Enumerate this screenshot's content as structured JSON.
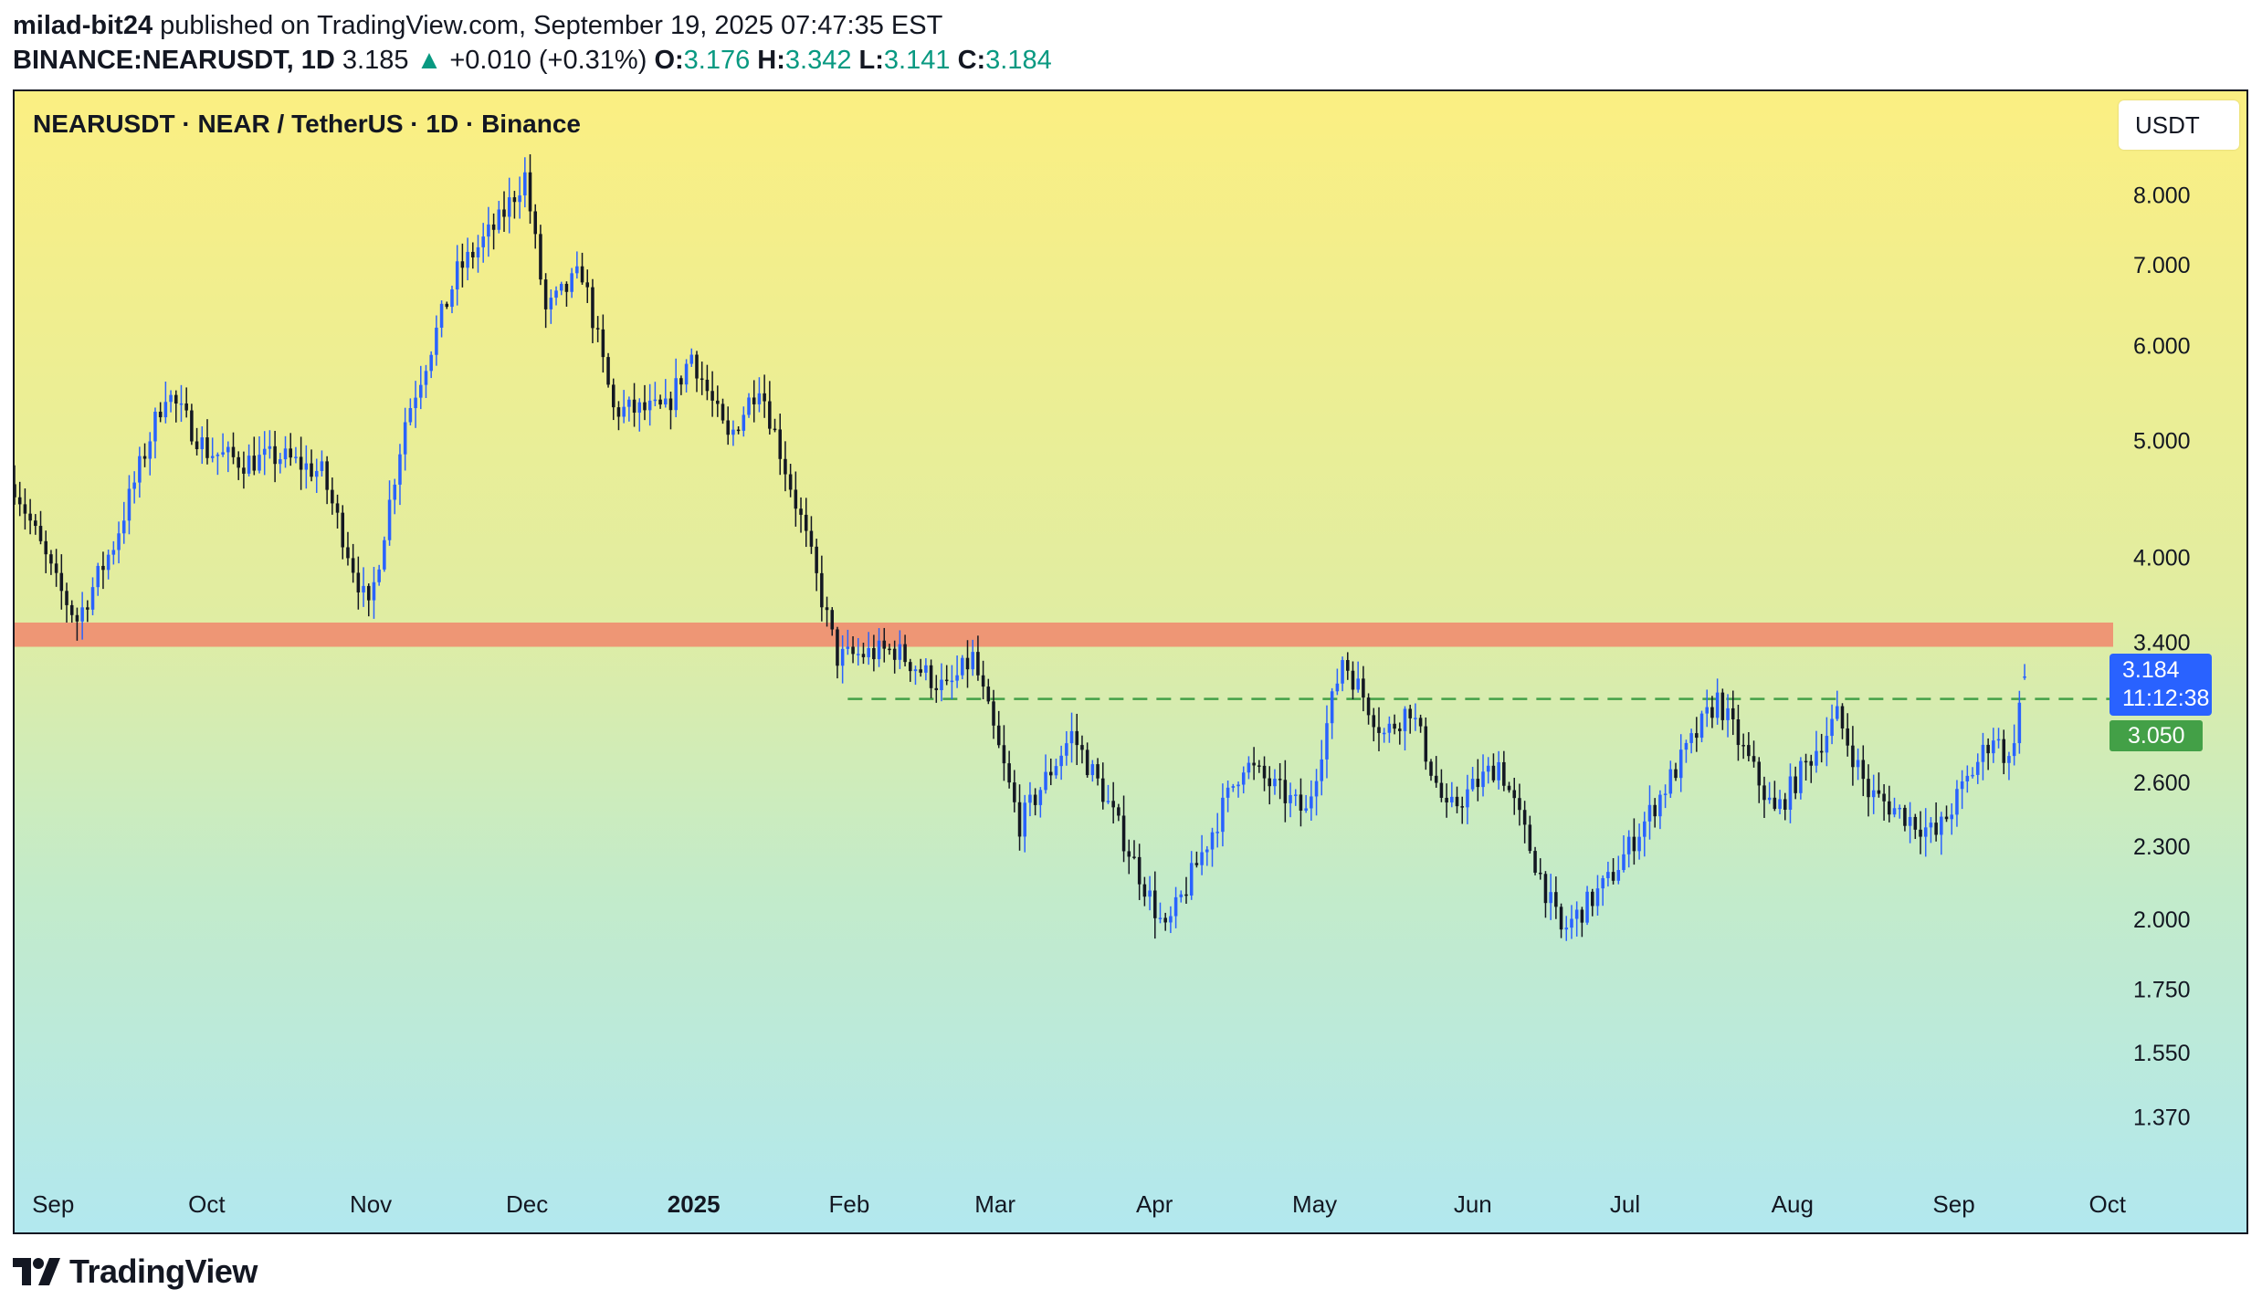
{
  "header": {
    "author": "milad-bit24",
    "published_text": " published on TradingView.com, September 19, 2025 07:47:35 EST",
    "symbol": "BINANCE:NEARUSDT, 1D",
    "last": "3.185",
    "change_arrow": "▲",
    "change": "+0.010 (+0.31%)",
    "o_label": "O:",
    "o_value": "3.176",
    "h_label": "H:",
    "h_value": "3.342",
    "l_label": "L:",
    "l_value": "3.141",
    "c_label": "C:",
    "c_value": "3.184"
  },
  "chart": {
    "title": "NEARUSDT · NEAR / TetherUS · 1D · Binance",
    "currency_label": "USDT",
    "price_tag": "3.184",
    "countdown": "11:12:38",
    "level_tag": "3.050"
  },
  "colors": {
    "up": "#2962ff",
    "down": "#131722",
    "zone": "#f08c70",
    "dashed_line": "#43a047",
    "bg_top": "#fbef82",
    "bg_bottom": "#b2e8ef"
  },
  "chart_data": {
    "type": "candlestick",
    "scale": "log",
    "title": "NEARUSDT · NEAR / TetherUS · 1D · Binance",
    "ylim": [
      1.22,
      9.1
    ],
    "y_ticks": [
      {
        "value": 8.0,
        "label": "8.000"
      },
      {
        "value": 7.0,
        "label": "7.000"
      },
      {
        "value": 6.0,
        "label": "6.000"
      },
      {
        "value": 5.0,
        "label": "5.000"
      },
      {
        "value": 4.0,
        "label": "4.000"
      },
      {
        "value": 3.4,
        "label": "3.400"
      },
      {
        "value": 2.6,
        "label": "2.600"
      },
      {
        "value": 2.3,
        "label": "2.300"
      },
      {
        "value": 2.0,
        "label": "2.000"
      },
      {
        "value": 1.75,
        "label": "1.750"
      },
      {
        "value": 1.55,
        "label": "1.550"
      },
      {
        "value": 1.37,
        "label": "1.370"
      }
    ],
    "x_ticks": [
      {
        "date": "2024-09-01",
        "label": "Sep",
        "bold": false
      },
      {
        "date": "2024-10-01",
        "label": "Oct",
        "bold": false
      },
      {
        "date": "2024-11-01",
        "label": "Nov",
        "bold": false
      },
      {
        "date": "2024-12-01",
        "label": "Dec",
        "bold": false
      },
      {
        "date": "2025-01-01",
        "label": "2025",
        "bold": true
      },
      {
        "date": "2025-02-01",
        "label": "Feb",
        "bold": false
      },
      {
        "date": "2025-03-01",
        "label": "Mar",
        "bold": false
      },
      {
        "date": "2025-04-01",
        "label": "Apr",
        "bold": false
      },
      {
        "date": "2025-05-01",
        "label": "May",
        "bold": false
      },
      {
        "date": "2025-06-01",
        "label": "Jun",
        "bold": false
      },
      {
        "date": "2025-07-01",
        "label": "Jul",
        "bold": false
      },
      {
        "date": "2025-08-01",
        "label": "Aug",
        "bold": false
      },
      {
        "date": "2025-09-01",
        "label": "Sep",
        "bold": false
      },
      {
        "date": "2025-10-01",
        "label": "Oct",
        "bold": false
      }
    ],
    "x_range": [
      "2024-08-29",
      "2025-10-06"
    ],
    "resistance_zone": [
      3.37,
      3.53
    ],
    "dashed_level": 3.05,
    "dashed_start": "2025-02-05",
    "last_price": 3.184,
    "closes": [
      {
        "date": "2024-08-29",
        "close": 4.6
      },
      {
        "date": "2024-09-06",
        "close": 3.8
      },
      {
        "date": "2024-09-10",
        "close": 3.55
      },
      {
        "date": "2024-09-17",
        "close": 4.1
      },
      {
        "date": "2024-09-27",
        "close": 5.5
      },
      {
        "date": "2024-10-05",
        "close": 4.9
      },
      {
        "date": "2024-10-12",
        "close": 4.8
      },
      {
        "date": "2024-10-19",
        "close": 4.85
      },
      {
        "date": "2024-10-27",
        "close": 4.7
      },
      {
        "date": "2024-11-05",
        "close": 3.6
      },
      {
        "date": "2024-11-12",
        "close": 5.2
      },
      {
        "date": "2024-11-22",
        "close": 6.9
      },
      {
        "date": "2024-11-30",
        "close": 7.6
      },
      {
        "date": "2024-12-05",
        "close": 8.3
      },
      {
        "date": "2024-12-09",
        "close": 6.4
      },
      {
        "date": "2024-12-16",
        "close": 6.9
      },
      {
        "date": "2024-12-22",
        "close": 5.3
      },
      {
        "date": "2025-01-01",
        "close": 5.3
      },
      {
        "date": "2025-01-06",
        "close": 5.9
      },
      {
        "date": "2025-01-13",
        "close": 5.0
      },
      {
        "date": "2025-01-19",
        "close": 5.6
      },
      {
        "date": "2025-01-27",
        "close": 4.3
      },
      {
        "date": "2025-02-03",
        "close": 3.3
      },
      {
        "date": "2025-02-14",
        "close": 3.35
      },
      {
        "date": "2025-02-24",
        "close": 3.1
      },
      {
        "date": "2025-03-01",
        "close": 3.3
      },
      {
        "date": "2025-03-10",
        "close": 2.4
      },
      {
        "date": "2025-03-20",
        "close": 2.85
      },
      {
        "date": "2025-03-26",
        "close": 2.55
      },
      {
        "date": "2025-04-07",
        "close": 1.95
      },
      {
        "date": "2025-04-22",
        "close": 2.7
      },
      {
        "date": "2025-05-04",
        "close": 2.45
      },
      {
        "date": "2025-05-11",
        "close": 3.3
      },
      {
        "date": "2025-05-19",
        "close": 2.85
      },
      {
        "date": "2025-05-24",
        "close": 3.0
      },
      {
        "date": "2025-05-31",
        "close": 2.45
      },
      {
        "date": "2025-06-10",
        "close": 2.7
      },
      {
        "date": "2025-06-22",
        "close": 1.95
      },
      {
        "date": "2025-07-01",
        "close": 2.15
      },
      {
        "date": "2025-07-09",
        "close": 2.45
      },
      {
        "date": "2025-07-22",
        "close": 3.05
      },
      {
        "date": "2025-08-02",
        "close": 2.45
      },
      {
        "date": "2025-08-14",
        "close": 2.95
      },
      {
        "date": "2025-08-20",
        "close": 2.55
      },
      {
        "date": "2025-09-02",
        "close": 2.35
      },
      {
        "date": "2025-09-13",
        "close": 2.85
      },
      {
        "date": "2025-09-16",
        "close": 2.7
      },
      {
        "date": "2025-09-19",
        "close": 3.184
      }
    ]
  },
  "footer": {
    "brand": "TradingView"
  }
}
